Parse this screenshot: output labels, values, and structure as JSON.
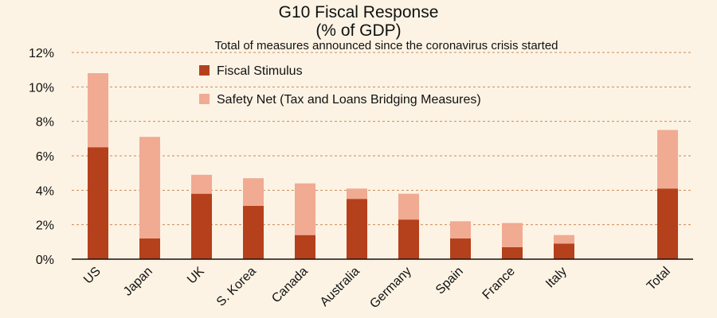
{
  "chart_data": {
    "type": "bar",
    "stacked": true,
    "title_line1": "G10 Fiscal Response",
    "title_line2": "(% of GDP)",
    "subtitle": "Total of measures announced since the coronavirus crisis started",
    "categories": [
      "US",
      "Japan",
      "UK",
      "S. Korea",
      "Canada",
      "Australia",
      "Germany",
      "Spain",
      "France",
      "Italy",
      "Total"
    ],
    "series": [
      {
        "name": "Fiscal Stimulus",
        "color": "#b5401c",
        "values": [
          6.5,
          1.2,
          3.8,
          3.1,
          1.4,
          3.5,
          2.3,
          1.2,
          0.7,
          0.9,
          4.1
        ]
      },
      {
        "name": "Safety Net (Tax and Loans Bridging Measures)",
        "color": "#f0ab92",
        "values": [
          4.3,
          5.9,
          1.1,
          1.6,
          3.0,
          0.6,
          1.5,
          1.0,
          1.4,
          0.5,
          3.4
        ]
      }
    ],
    "ylim": [
      0,
      12
    ],
    "yticks": [
      0,
      2,
      4,
      6,
      8,
      10,
      12
    ],
    "ytick_labels": [
      "0%",
      "2%",
      "4%",
      "6%",
      "8%",
      "10%",
      "12%"
    ],
    "xlabel": "",
    "ylabel": "",
    "grid": true,
    "legend_position": "top-center"
  }
}
